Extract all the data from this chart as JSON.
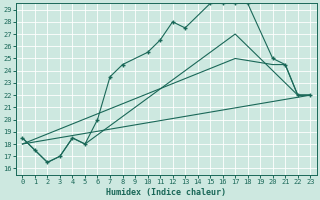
{
  "xlabel": "Humidex (Indice chaleur)",
  "bg_color": "#cde8e0",
  "grid_color": "#b8d8d0",
  "line_color": "#1a6858",
  "xlim": [
    -0.5,
    23.5
  ],
  "ylim": [
    15.5,
    29.5
  ],
  "xticks": [
    0,
    1,
    2,
    3,
    4,
    5,
    6,
    7,
    8,
    9,
    10,
    11,
    12,
    13,
    14,
    15,
    16,
    17,
    18,
    19,
    20,
    21,
    22,
    23
  ],
  "yticks": [
    16,
    17,
    18,
    19,
    20,
    21,
    22,
    23,
    24,
    25,
    26,
    27,
    28,
    29
  ],
  "line1_x": [
    0,
    1,
    2,
    3,
    4,
    5,
    6,
    7,
    8,
    10,
    11,
    12,
    13,
    15,
    16,
    17,
    18,
    20,
    21,
    22,
    23
  ],
  "line1_y": [
    18.5,
    17.5,
    16.5,
    17.0,
    18.5,
    18.0,
    20.0,
    23.5,
    24.5,
    25.5,
    26.5,
    28.0,
    27.5,
    29.5,
    29.5,
    29.5,
    29.5,
    25.0,
    24.5,
    22.0,
    22.0
  ],
  "line2_x": [
    0,
    1,
    2,
    3,
    4,
    5,
    17,
    22,
    23
  ],
  "line2_y": [
    18.5,
    17.5,
    16.5,
    17.0,
    18.5,
    18.0,
    27.0,
    22.0,
    22.0
  ],
  "line3_x": [
    0,
    23
  ],
  "line3_y": [
    18.0,
    22.0
  ],
  "line4_x": [
    0,
    17,
    20,
    21,
    22,
    23
  ],
  "line4_y": [
    18.0,
    25.0,
    24.5,
    24.5,
    22.0,
    22.0
  ]
}
